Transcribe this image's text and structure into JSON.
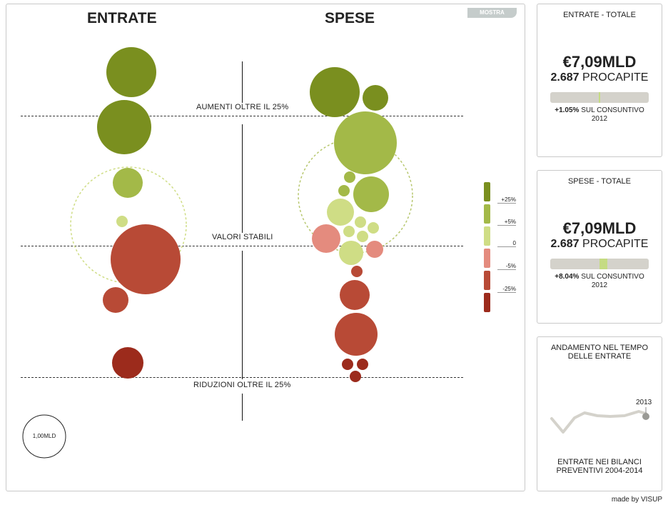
{
  "main": {
    "income_title": "ENTRATE",
    "expense_title": "SPESE",
    "toggle_label": "MOSTRA",
    "bands": {
      "top": "AUMENTI OLTRE IL 25%",
      "middle": "VALORI STABILI",
      "bottom": "RIDUZIONI OLTRE IL 25%"
    },
    "legend": [
      "+25%",
      "+5%",
      "0",
      "-5%",
      "-25%"
    ],
    "scale_label": "1,00MLD"
  },
  "colors": {
    "dark_green": "#7a8f1f",
    "green": "#a3b948",
    "light_green": "#cfdd85",
    "pink": "#e48b7e",
    "red": "#b84a36",
    "dark_red": "#9c2b1c"
  },
  "income_panel": {
    "title": "ENTRATE - TOTALE",
    "amount": "€7,09MLD",
    "procapite_value": "2.687",
    "procapite_label": "PROCAPITE",
    "delta": "+1.05%",
    "delta_label": "SUL CONSUNTIVO",
    "year": "2012",
    "bar_marker": 0.5
  },
  "expense_panel": {
    "title": "SPESE - TOTALE",
    "amount": "€7,09MLD",
    "procapite_value": "2.687",
    "procapite_label": "PROCAPITE",
    "delta": "+8.04%",
    "delta_label": "SUL CONSUNTIVO",
    "year": "2012",
    "bar_marker": 0.5
  },
  "trend_panel": {
    "title_line1": "ANDAMENTO NEL TEMPO",
    "title_line2": "DELLE ENTRATE",
    "year_label": "2013",
    "caption_line1": "ENTRATE NEI BILANCI",
    "caption_line2": "PREVENTIVI 2004-2014"
  },
  "credit": "made by VISUP"
}
